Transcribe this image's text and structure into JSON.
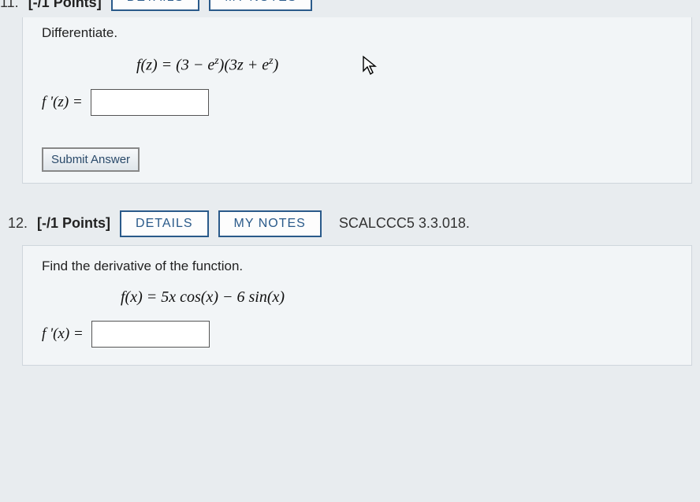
{
  "q11": {
    "number": "11.",
    "points": "[-/1 Points]",
    "details_btn": "DETAILS",
    "notes_btn": "MY NOTES",
    "prompt": "Differentiate.",
    "formula_html": "f(z) = (3 − e<sup>z</sup>)(3z + e<sup>z</sup>)",
    "answer_label_html": "f '(z) =",
    "submit": "Submit Answer"
  },
  "q12": {
    "number": "12.",
    "points": "[-/1 Points]",
    "details_btn": "DETAILS",
    "notes_btn": "MY NOTES",
    "ref": "SCALCCC5 3.3.018.",
    "prompt": "Find the derivative of the function.",
    "formula_html": "f(x) = 5x cos(x) − 6 sin(x)",
    "answer_label_html": "f '(x) ="
  },
  "colors": {
    "page_bg": "#e8ecef",
    "panel_bg": "#f2f5f7",
    "panel_border": "#cfd6dc",
    "btn_border": "#2a5a8a",
    "btn_text": "#2a5a8a",
    "text": "#222"
  }
}
